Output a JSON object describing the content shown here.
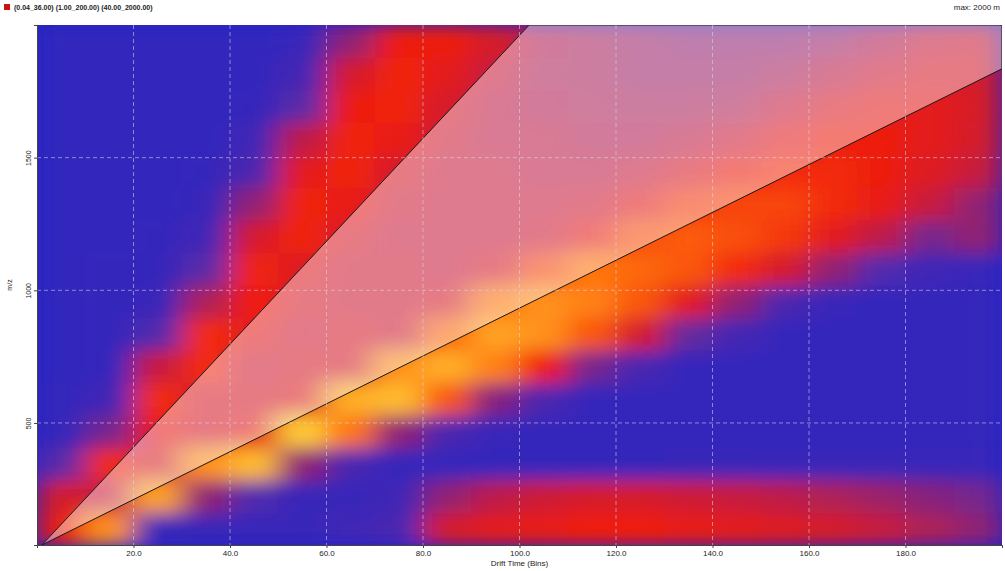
{
  "chart_data": {
    "type": "heatmap",
    "title": "(0.04_36.00) (1.00_200.00) (40.00_2000.00)",
    "subtitle": "max: 2000 m",
    "x_label": "Drift Time (Bins)",
    "y_label": "m/z",
    "xlim": [
      0,
      200
    ],
    "ylim": [
      40,
      2000
    ],
    "xticks": [
      {
        "value": 20,
        "label": "20.0"
      },
      {
        "value": 40,
        "label": "40.0"
      },
      {
        "value": 60,
        "label": "60.0"
      },
      {
        "value": 80,
        "label": "80.0"
      },
      {
        "value": 100,
        "label": "100.0"
      },
      {
        "value": 120,
        "label": "120.0"
      },
      {
        "value": 140,
        "label": "140.0"
      },
      {
        "value": 160,
        "label": "160.0"
      },
      {
        "value": 180,
        "label": "180.0"
      }
    ],
    "yticks": [
      500,
      1000,
      1500
    ],
    "grid": true,
    "color_range": [
      0,
      100
    ],
    "x_edges": [
      0,
      10,
      20,
      30,
      40,
      50,
      60,
      70,
      80,
      90,
      100,
      110,
      120,
      130,
      140,
      150,
      160,
      170,
      180,
      190,
      200
    ],
    "y_edges": [
      40,
      162.5,
      285,
      407.5,
      530,
      652.5,
      775,
      897.5,
      1020,
      1142.5,
      1265,
      1387.5,
      1510,
      1632.5,
      1755,
      1877.5,
      2000
    ],
    "cells": [
      [
        65,
        85,
        12,
        12,
        12,
        12,
        15,
        20,
        55,
        60,
        62,
        65,
        65,
        62,
        60,
        58,
        55,
        50,
        45,
        40
      ],
      [
        55,
        50,
        88,
        40,
        25,
        12,
        12,
        15,
        40,
        48,
        52,
        55,
        55,
        52,
        50,
        48,
        45,
        42,
        38,
        35
      ],
      [
        30,
        68,
        55,
        85,
        92,
        40,
        20,
        10,
        10,
        10,
        10,
        10,
        10,
        12,
        12,
        12,
        12,
        12,
        12,
        12
      ],
      [
        10,
        35,
        62,
        55,
        60,
        95,
        80,
        40,
        22,
        12,
        10,
        10,
        10,
        10,
        10,
        10,
        10,
        10,
        10,
        10
      ],
      [
        10,
        15,
        68,
        55,
        55,
        58,
        90,
        92,
        75,
        38,
        22,
        10,
        10,
        10,
        10,
        10,
        10,
        10,
        10,
        10
      ],
      [
        8,
        10,
        50,
        68,
        52,
        55,
        55,
        85,
        90,
        82,
        65,
        35,
        20,
        10,
        10,
        10,
        10,
        10,
        10,
        10
      ],
      [
        8,
        10,
        25,
        68,
        60,
        52,
        55,
        52,
        78,
        88,
        85,
        75,
        55,
        32,
        18,
        10,
        10,
        10,
        10,
        10
      ],
      [
        8,
        10,
        12,
        45,
        65,
        55,
        52,
        52,
        55,
        80,
        85,
        82,
        75,
        60,
        40,
        22,
        12,
        10,
        10,
        10
      ],
      [
        8,
        10,
        10,
        30,
        66,
        58,
        52,
        52,
        50,
        55,
        72,
        80,
        78,
        75,
        68,
        55,
        40,
        25,
        15,
        12
      ],
      [
        8,
        8,
        10,
        15,
        55,
        66,
        55,
        50,
        50,
        50,
        52,
        62,
        74,
        76,
        74,
        70,
        60,
        48,
        35,
        40
      ],
      [
        8,
        8,
        8,
        12,
        40,
        66,
        62,
        52,
        50,
        50,
        50,
        52,
        60,
        70,
        72,
        72,
        68,
        62,
        50,
        40
      ],
      [
        8,
        8,
        8,
        10,
        22,
        60,
        66,
        55,
        50,
        50,
        48,
        48,
        50,
        56,
        64,
        68,
        68,
        64,
        58,
        50
      ],
      [
        8,
        8,
        8,
        8,
        15,
        48,
        66,
        62,
        52,
        48,
        48,
        46,
        46,
        48,
        52,
        60,
        64,
        64,
        60,
        55
      ],
      [
        8,
        8,
        8,
        8,
        10,
        30,
        64,
        66,
        55,
        48,
        46,
        45,
        44,
        44,
        45,
        50,
        56,
        60,
        60,
        56
      ],
      [
        8,
        8,
        8,
        8,
        8,
        18,
        55,
        66,
        60,
        50,
        45,
        44,
        42,
        42,
        42,
        44,
        48,
        52,
        55,
        55
      ],
      [
        8,
        8,
        8,
        8,
        8,
        12,
        40,
        64,
        64,
        55,
        46,
        44,
        42,
        40,
        40,
        40,
        42,
        46,
        50,
        52
      ]
    ],
    "selection": {
      "x": [
        1,
        102,
        200,
        200
      ],
      "y": [
        40,
        2000,
        2000,
        1835
      ]
    }
  }
}
